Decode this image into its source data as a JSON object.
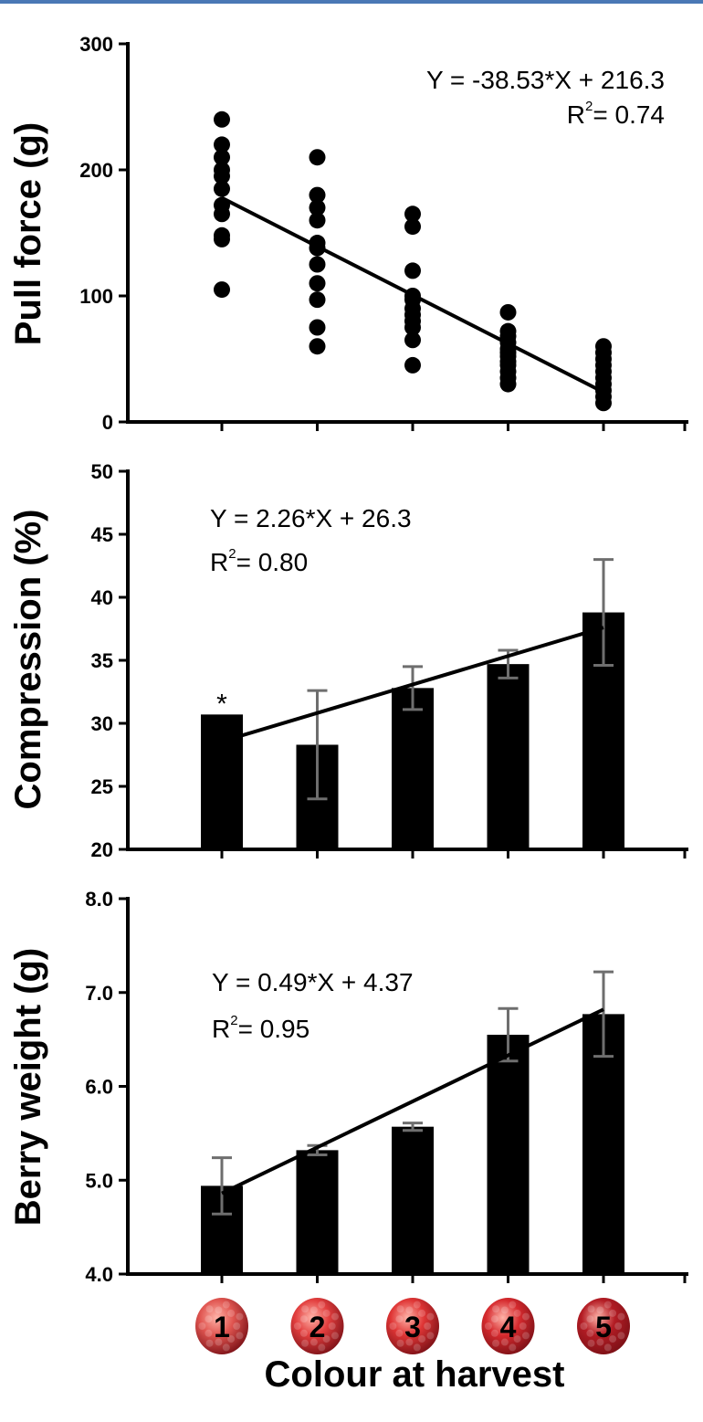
{
  "x_axis_title": "Colour at harvest",
  "categories": [
    "1",
    "2",
    "3",
    "4",
    "5"
  ],
  "colors": {
    "berry": [
      "#e05550",
      "#e23e3e",
      "#df3535",
      "#d62a2e",
      "#b31c24"
    ],
    "error_bar": "#6e6e6e",
    "top_rule": "#4a78b5"
  },
  "chart_data": [
    {
      "type": "scatter",
      "ylabel": "Pull force (g)",
      "ylim": [
        0,
        300
      ],
      "yticks": [
        "0",
        "100",
        "200",
        "300"
      ],
      "x": [
        1,
        2,
        3,
        4,
        5
      ],
      "points": [
        [
          1,
          240
        ],
        [
          1,
          220
        ],
        [
          1,
          210
        ],
        [
          1,
          200
        ],
        [
          1,
          195
        ],
        [
          1,
          185
        ],
        [
          1,
          172
        ],
        [
          1,
          165
        ],
        [
          1,
          148
        ],
        [
          1,
          145
        ],
        [
          1,
          105
        ],
        [
          2,
          210
        ],
        [
          2,
          180
        ],
        [
          2,
          170
        ],
        [
          2,
          160
        ],
        [
          2,
          142
        ],
        [
          2,
          138
        ],
        [
          2,
          125
        ],
        [
          2,
          110
        ],
        [
          2,
          97
        ],
        [
          2,
          75
        ],
        [
          2,
          60
        ],
        [
          3,
          165
        ],
        [
          3,
          155
        ],
        [
          3,
          120
        ],
        [
          3,
          100
        ],
        [
          3,
          97
        ],
        [
          3,
          90
        ],
        [
          3,
          85
        ],
        [
          3,
          80
        ],
        [
          3,
          75
        ],
        [
          3,
          65
        ],
        [
          3,
          45
        ],
        [
          4,
          87
        ],
        [
          4,
          72
        ],
        [
          4,
          68
        ],
        [
          4,
          63
        ],
        [
          4,
          58
        ],
        [
          4,
          55
        ],
        [
          4,
          52
        ],
        [
          4,
          48
        ],
        [
          4,
          45
        ],
        [
          4,
          40
        ],
        [
          4,
          35
        ],
        [
          4,
          30
        ],
        [
          5,
          60
        ],
        [
          5,
          55
        ],
        [
          5,
          50
        ],
        [
          5,
          45
        ],
        [
          5,
          40
        ],
        [
          5,
          35
        ],
        [
          5,
          30
        ],
        [
          5,
          25
        ],
        [
          5,
          20
        ],
        [
          5,
          15
        ]
      ],
      "fit": {
        "slope": -38.53,
        "intercept": 216.3
      },
      "equation": "Y = -38.53*X + 216.3",
      "r2_label": "R",
      "r2_sup": "2",
      "r2_value": "= 0.74"
    },
    {
      "type": "bar",
      "ylabel": "Compression (%)",
      "ylim": [
        20,
        50
      ],
      "yticks": [
        "20",
        "25",
        "30",
        "35",
        "40",
        "45",
        "50"
      ],
      "values": [
        30.7,
        28.3,
        32.8,
        34.7,
        38.8
      ],
      "errors": [
        0,
        4.3,
        1.7,
        1.1,
        4.2
      ],
      "fit": {
        "slope": 2.26,
        "intercept": 26.3
      },
      "equation": "Y = 2.26*X + 26.3",
      "r2_label": "R",
      "r2_sup": "2",
      "r2_value": "= 0.80",
      "annotation": "*"
    },
    {
      "type": "bar",
      "ylabel": "Berry weight (g)",
      "ylim": [
        4.0,
        8.0
      ],
      "yticks": [
        "4.0",
        "5.0",
        "6.0",
        "7.0",
        "8.0"
      ],
      "values": [
        4.94,
        5.32,
        5.57,
        6.55,
        6.77
      ],
      "errors": [
        0.3,
        0.05,
        0.04,
        0.28,
        0.45
      ],
      "fit": {
        "slope": 0.49,
        "intercept": 4.37
      },
      "equation": "Y = 0.49*X + 4.37",
      "r2_label": "R",
      "r2_sup": "2",
      "r2_value": "= 0.95"
    }
  ]
}
